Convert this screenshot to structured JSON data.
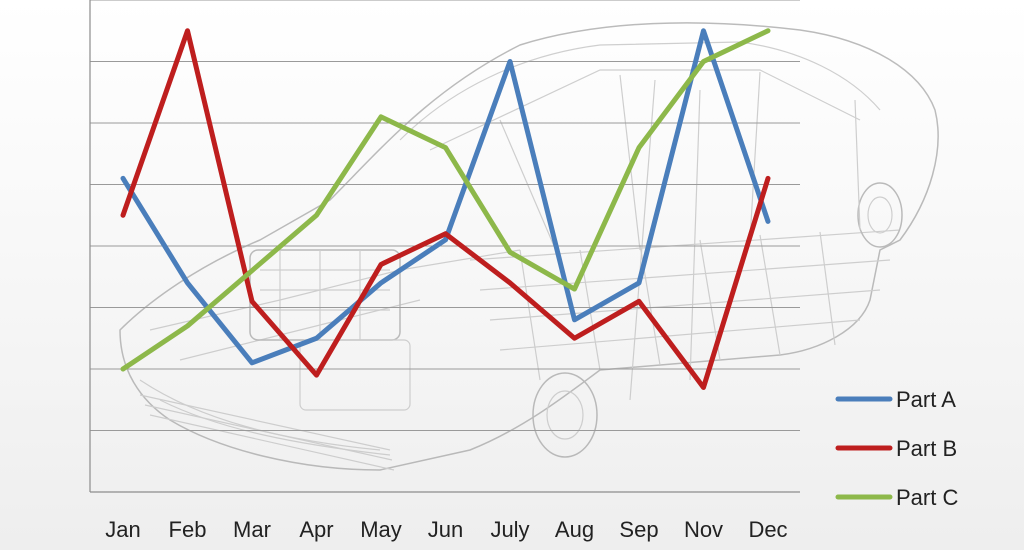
{
  "chart_data": {
    "type": "line",
    "title": "",
    "xlabel": "",
    "ylabel": "",
    "categories": [
      "Jan",
      "Feb",
      "Mar",
      "Apr",
      "May",
      "Jun",
      "July",
      "Aug",
      "Sep",
      "Nov",
      "Dec"
    ],
    "ylim": [
      0,
      8
    ],
    "grid": true,
    "y_tick_labels_shown": false,
    "legend_position": "bottom-right",
    "series": [
      {
        "name": "Part A",
        "color": "#4a7ebb",
        "values": [
          5.1,
          3.4,
          2.1,
          2.5,
          3.4,
          4.1,
          7.0,
          2.8,
          3.4,
          7.5,
          4.4
        ]
      },
      {
        "name": "Part B",
        "color": "#be1e1e",
        "values": [
          4.5,
          7.5,
          3.1,
          1.9,
          3.7,
          4.2,
          3.4,
          2.5,
          3.1,
          1.7,
          5.1
        ]
      },
      {
        "name": "Part C",
        "color": "#8db84a",
        "values": [
          2.0,
          2.7,
          3.6,
          4.5,
          6.1,
          5.6,
          3.9,
          3.3,
          5.6,
          7.0,
          7.5
        ]
      }
    ],
    "background_image": "car-wireframe"
  }
}
